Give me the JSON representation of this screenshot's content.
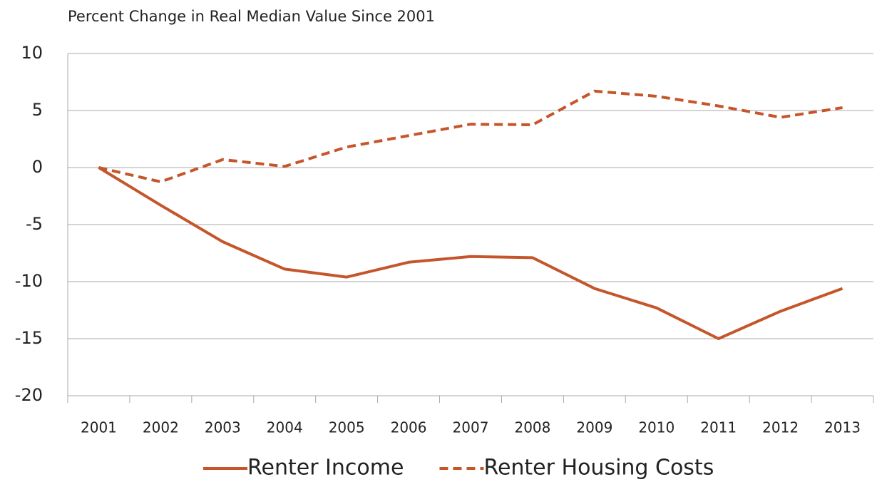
{
  "chart_data": {
    "type": "line",
    "title": "Percent Change in Real Median Value Since 2001",
    "categories": [
      "2001",
      "2002",
      "2003",
      "2004",
      "2005",
      "2006",
      "2007",
      "2008",
      "2009",
      "2010",
      "2011",
      "2012",
      "2013"
    ],
    "series": [
      {
        "name": "Renter Income",
        "color": "#c5562b",
        "dash": "solid",
        "values": [
          0,
          -3.3,
          -6.5,
          -8.9,
          -9.6,
          -8.3,
          -7.8,
          -7.9,
          -10.6,
          -12.3,
          -15.0,
          -12.6,
          -10.6
        ]
      },
      {
        "name": "Renter Housing Costs",
        "color": "#c5562b",
        "dash": "dashed",
        "values": [
          0,
          -1.25,
          0.7,
          0.1,
          1.8,
          2.8,
          3.8,
          3.75,
          6.7,
          6.25,
          5.4,
          4.4,
          5.25
        ]
      }
    ],
    "ylim": [
      -20,
      10
    ],
    "yticks": [
      -20,
      -15,
      -10,
      -5,
      0,
      5,
      10
    ],
    "grid": true,
    "legend": "bottom"
  }
}
